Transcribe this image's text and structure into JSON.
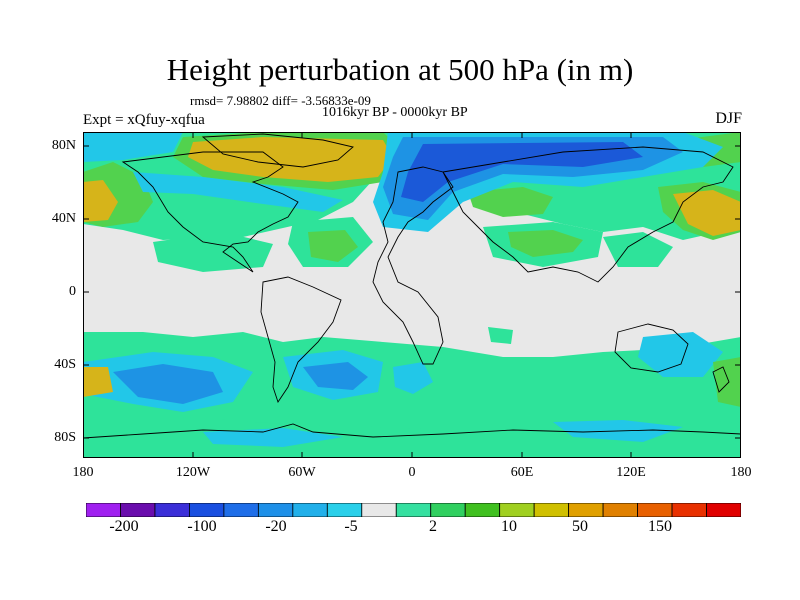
{
  "title": "Height perturbation at 500 hPa (in m)",
  "stats": "rmsd= 7.98802 diff= -3.56833e-09",
  "period": "1016kyr BP - 0000kyr BP",
  "experiment": "Expt = xQfuy-xqfua",
  "season": "DJF",
  "axes": {
    "lat_labels": [
      "80N",
      "40N",
      "0",
      "40S",
      "80S"
    ],
    "lon_labels": [
      "180",
      "120W",
      "60W",
      "0",
      "60E",
      "120E",
      "180"
    ]
  },
  "colorbar": {
    "labels": [
      "-200",
      "-100",
      "-20",
      "-5",
      "2",
      "10",
      "50",
      "150"
    ],
    "colors": [
      "#a020f0",
      "#6a0dad",
      "#3b2fd8",
      "#1a4fe0",
      "#1f6ee8",
      "#1e90e8",
      "#22b0ea",
      "#2ad0ea",
      "#e8e8e8",
      "#35e0a0",
      "#30d060",
      "#40c020",
      "#a0d020",
      "#d0c000",
      "#e0a000",
      "#e08000",
      "#e86000",
      "#e83000",
      "#e00000"
    ]
  },
  "palette": {
    "neutral": "#e8e8e8",
    "pos_weak": "#2ee39a",
    "pos_mid": "#52d24e",
    "pos_strong": "#d6b41a",
    "neg_weak": "#22c7e8",
    "neg_mid": "#1e93e4",
    "neg_strong": "#1b59d8"
  }
}
